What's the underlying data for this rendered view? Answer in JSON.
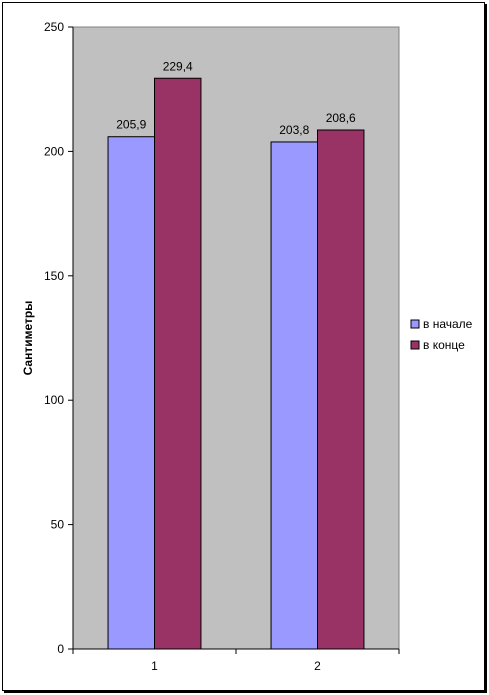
{
  "chart_data": {
    "type": "bar",
    "categories": [
      "1",
      "2"
    ],
    "series": [
      {
        "name": "в начале",
        "values": [
          205.9,
          203.8
        ],
        "labels": [
          "205,9",
          "203,8"
        ],
        "color": "#9999ff"
      },
      {
        "name": "в конце",
        "values": [
          229.4,
          208.6
        ],
        "labels": [
          "229,4",
          "208,6"
        ],
        "color": "#993366"
      }
    ],
    "title": "",
    "xlabel": "",
    "ylabel": "Сантиметры",
    "ylim": [
      0,
      250
    ],
    "yticks": [
      "0",
      "50",
      "100",
      "150",
      "200",
      "250"
    ],
    "grid": false,
    "plot_background": "#c0c0c0",
    "legend_position": "right"
  }
}
